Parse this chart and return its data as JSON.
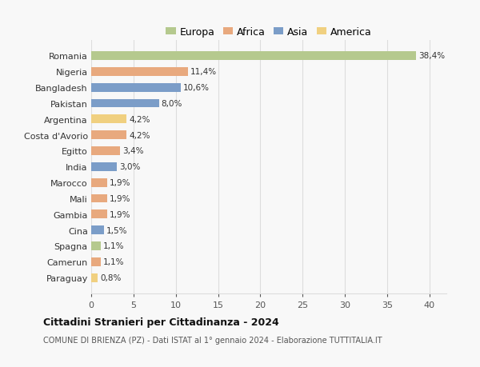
{
  "countries": [
    "Romania",
    "Nigeria",
    "Bangladesh",
    "Pakistan",
    "Argentina",
    "Costa d'Avorio",
    "Egitto",
    "India",
    "Marocco",
    "Mali",
    "Gambia",
    "Cina",
    "Spagna",
    "Camerun",
    "Paraguay"
  ],
  "values": [
    38.4,
    11.4,
    10.6,
    8.0,
    4.2,
    4.2,
    3.4,
    3.0,
    1.9,
    1.9,
    1.9,
    1.5,
    1.1,
    1.1,
    0.8
  ],
  "labels": [
    "38,4%",
    "11,4%",
    "10,6%",
    "8,0%",
    "4,2%",
    "4,2%",
    "3,4%",
    "3,0%",
    "1,9%",
    "1,9%",
    "1,9%",
    "1,5%",
    "1,1%",
    "1,1%",
    "0,8%"
  ],
  "continents": [
    "Europa",
    "Africa",
    "Asia",
    "Asia",
    "America",
    "Africa",
    "Africa",
    "Asia",
    "Africa",
    "Africa",
    "Africa",
    "Asia",
    "Europa",
    "Africa",
    "America"
  ],
  "colors": {
    "Europa": "#b5c98e",
    "Africa": "#e8a97e",
    "Asia": "#7b9dc8",
    "America": "#f0d080"
  },
  "legend_order": [
    "Europa",
    "Africa",
    "Asia",
    "America"
  ],
  "title": "Cittadini Stranieri per Cittadinanza - 2024",
  "subtitle": "COMUNE DI BRIENZA (PZ) - Dati ISTAT al 1° gennaio 2024 - Elaborazione TUTTITALIA.IT",
  "xlim": [
    0,
    42
  ],
  "xticks": [
    0,
    5,
    10,
    15,
    20,
    25,
    30,
    35,
    40
  ],
  "background_color": "#f8f8f8",
  "grid_color": "#dddddd"
}
